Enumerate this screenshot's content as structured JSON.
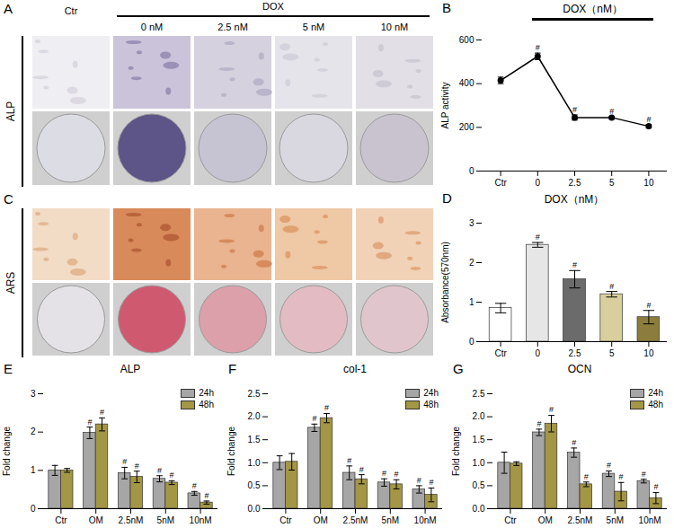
{
  "image_panels": [
    {
      "panel_label": "A",
      "columns": [
        "Ctr",
        "0 nM",
        "2.5 nM",
        "5 nM",
        "10 nM"
      ],
      "group_label": "DOX",
      "group_span": [
        "0 nM",
        "10 nM"
      ],
      "row_label": "ALP"
    },
    {
      "panel_label": "C",
      "row_label": "ARS"
    }
  ],
  "chart_data": [
    {
      "type": "line",
      "panel_label": "B",
      "title": "DOX（nM）",
      "title_span": [
        "0",
        "10"
      ],
      "ylabel": "ALP activity",
      "categories": [
        "Ctr",
        "0",
        "2.5",
        "5",
        "10"
      ],
      "values": [
        415,
        525,
        245,
        245,
        205
      ],
      "errors": [
        15,
        15,
        12,
        5,
        8
      ],
      "significance": [
        null,
        "#",
        "#",
        "#",
        "#"
      ],
      "color": "#000000",
      "marker": "circle",
      "ylim": [
        0,
        600
      ],
      "yticks": [
        0,
        200,
        400,
        600
      ]
    },
    {
      "type": "bar",
      "panel_label": "D",
      "title": "DOX（nM）",
      "ylabel": "Absorbance(570nm)",
      "categories": [
        "Ctr",
        "0",
        "2.5",
        "5",
        "10"
      ],
      "values": [
        0.85,
        2.45,
        1.58,
        1.2,
        0.62
      ],
      "errors": [
        0.12,
        0.06,
        0.22,
        0.07,
        0.17
      ],
      "significance": [
        null,
        "#",
        "#",
        "#",
        "#"
      ],
      "colors": [
        "#ffffff",
        "#e6e6e6",
        "#6b6b6b",
        "#d8cf9c",
        "#8c7d3c"
      ],
      "ylim": [
        0,
        3
      ],
      "yticks": [
        0,
        1,
        2,
        3
      ]
    },
    {
      "type": "bar",
      "panel_label": "E",
      "title": "ALP",
      "ylabel": "Fold change",
      "categories": [
        "Ctr",
        "OM",
        "2.5nM",
        "5nM",
        "10nM"
      ],
      "series": [
        {
          "name": "24h",
          "color": "#a6a6a6",
          "values": [
            1.0,
            1.98,
            0.93,
            0.78,
            0.4
          ],
          "errors": [
            0.13,
            0.15,
            0.15,
            0.08,
            0.05
          ],
          "significance": [
            null,
            "#",
            "#",
            "#",
            "#"
          ]
        },
        {
          "name": "48h",
          "color": "#a39645",
          "values": [
            1.0,
            2.2,
            0.83,
            0.68,
            0.16
          ],
          "errors": [
            0.05,
            0.17,
            0.15,
            0.05,
            0.04
          ],
          "significance": [
            null,
            "#",
            "#",
            "#",
            "#"
          ]
        }
      ],
      "legend": "top-right",
      "ylim": [
        0,
        3
      ],
      "yticks": [
        0,
        1,
        2,
        3
      ]
    },
    {
      "type": "bar",
      "panel_label": "F",
      "title": "col-1",
      "ylabel": "Fold change",
      "categories": [
        "Ctr",
        "OM",
        "2.5nM",
        "5nM",
        "10nM"
      ],
      "series": [
        {
          "name": "24h",
          "color": "#a6a6a6",
          "values": [
            1.0,
            1.76,
            0.78,
            0.57,
            0.42
          ],
          "errors": [
            0.15,
            0.08,
            0.15,
            0.08,
            0.08
          ],
          "significance": [
            null,
            "#",
            "#",
            "#",
            "#"
          ]
        },
        {
          "name": "48h",
          "color": "#a39645",
          "values": [
            1.02,
            1.97,
            0.64,
            0.53,
            0.3
          ],
          "errors": [
            0.18,
            0.1,
            0.1,
            0.1,
            0.15
          ],
          "significance": [
            null,
            "#",
            "#",
            "#",
            "#"
          ]
        }
      ],
      "legend": "top-right",
      "ylim": [
        0,
        2.5
      ],
      "yticks": [
        {
          "value": 0,
          "label": "0.0"
        },
        0.5,
        {
          "value": 1,
          "label": "1.0"
        },
        1.5,
        {
          "value": 2,
          "label": "2.0"
        },
        2.5
      ]
    },
    {
      "type": "bar",
      "panel_label": "G",
      "title": "OCN",
      "ylabel": "Fold change",
      "categories": [
        "Ctr",
        "OM",
        "2.5nM",
        "5nM",
        "10nM"
      ],
      "series": [
        {
          "name": "24h",
          "color": "#a6a6a6",
          "values": [
            1.0,
            1.66,
            1.22,
            0.76,
            0.6
          ],
          "errors": [
            0.23,
            0.07,
            0.1,
            0.06,
            0.04
          ],
          "significance": [
            null,
            "#",
            "#",
            "#",
            "#"
          ]
        },
        {
          "name": "48h",
          "color": "#a39645",
          "values": [
            0.98,
            1.85,
            0.53,
            0.37,
            0.23
          ],
          "errors": [
            0.04,
            0.18,
            0.05,
            0.2,
            0.12
          ],
          "significance": [
            null,
            "#",
            "#",
            "#",
            "#"
          ]
        }
      ],
      "legend": "top-right",
      "ylim": [
        0,
        2.5
      ],
      "yticks": [
        {
          "value": 0,
          "label": "0.0"
        },
        0.5,
        {
          "value": 1,
          "label": "1.0"
        },
        1.5,
        {
          "value": 2,
          "label": "2.0"
        },
        2.5
      ]
    }
  ]
}
